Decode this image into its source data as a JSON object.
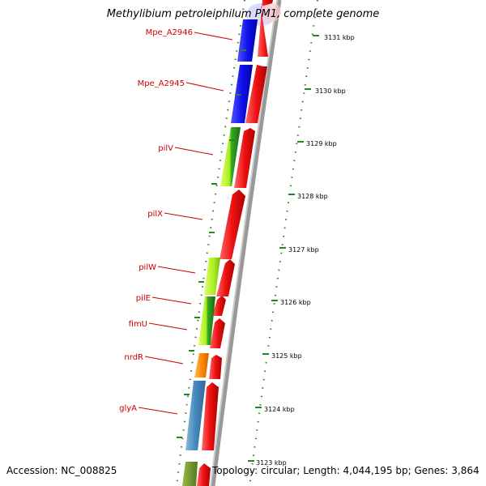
{
  "title": "Methylibium petroleiphilum PM1, complete genome",
  "footer": {
    "accession": "Accession: NC_008825",
    "topology": "Topology: circular; Length: 4,044,195 bp; Genes: 3,864"
  },
  "colors": {
    "forward_strand": "#ee1111",
    "gene_blue": "#1111ee",
    "gene_lightgreen": "#aaee22",
    "gene_darkgreen": "#339922",
    "gene_orange": "#ff8800",
    "gene_steelblue": "#4488bb",
    "label_red": "#cc0000",
    "ruler_green": "#228822"
  },
  "genes": [
    {
      "name": "Mpe_A2946"
    },
    {
      "name": "Mpe_A2945"
    },
    {
      "name": "pilV"
    },
    {
      "name": "pilX"
    },
    {
      "name": "pilW"
    },
    {
      "name": "pilE"
    },
    {
      "name": "fimU"
    },
    {
      "name": "nrdR"
    },
    {
      "name": "glyA"
    }
  ],
  "ruler_labels": [
    "3131 kbp",
    "3130 kbp",
    "3129 kbp",
    "3128 kbp",
    "3127 kbp",
    "3126 kbp",
    "3125 kbp",
    "3124 kbp",
    "3123 kbp"
  ]
}
